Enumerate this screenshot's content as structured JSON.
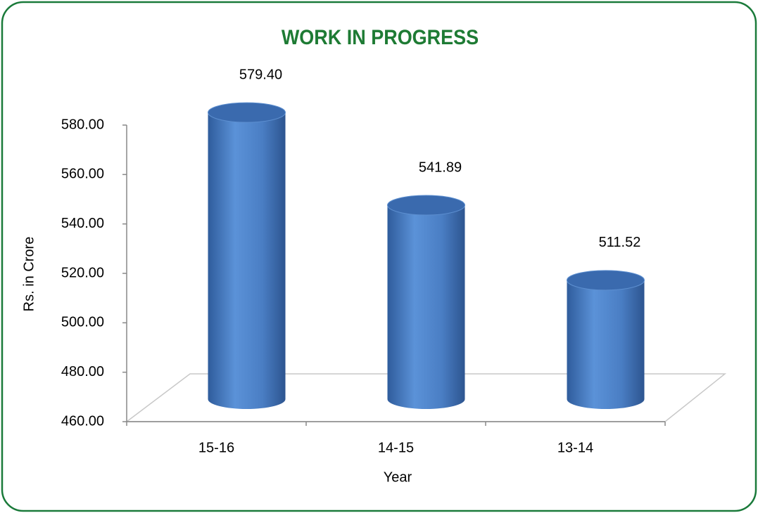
{
  "chart_data": {
    "type": "bar",
    "title": "WORK IN PROGRESS",
    "xlabel": "Year",
    "ylabel": "Rs. in Crore",
    "categories": [
      "15-16",
      "14-15",
      "13-14"
    ],
    "values": [
      579.4,
      541.89,
      511.52
    ],
    "value_labels": [
      "579.40",
      "541.89",
      "511.52"
    ],
    "color": "#4a7ec4",
    "ylim": [
      460,
      580
    ],
    "yticks": [
      {
        "value": 460,
        "label": "460.00"
      },
      {
        "value": 480,
        "label": "480.00"
      },
      {
        "value": 500,
        "label": "500.00"
      },
      {
        "value": 520,
        "label": "520.00"
      },
      {
        "value": 540,
        "label": "540.00"
      },
      {
        "value": 560,
        "label": "560.00"
      },
      {
        "value": 580,
        "label": "580.00"
      }
    ],
    "grid": false
  }
}
